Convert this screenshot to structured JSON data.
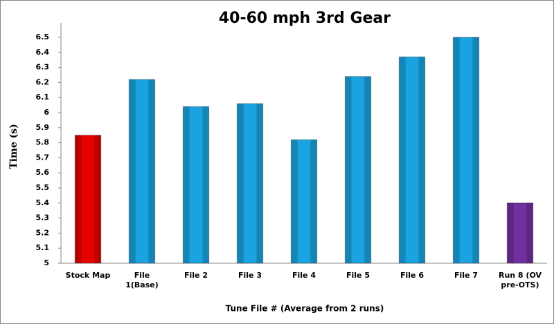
{
  "chart_data": {
    "type": "bar",
    "title": "40-60 mph 3rd Gear",
    "x_label": "Tune File # (Average from 2 runs)",
    "y_label": "Time (s)",
    "categories": [
      "Stock Map",
      "File 1(Base)",
      "File 2",
      "File 3",
      "File 4",
      "File 5",
      "File 6",
      "File 7",
      "Run 8 (OV pre-OTS)"
    ],
    "values": [
      5.85,
      6.22,
      6.04,
      6.06,
      5.82,
      6.24,
      6.37,
      6.5,
      5.4
    ],
    "colors": [
      "#e60000",
      "#1aa3e0",
      "#1aa3e0",
      "#1aa3e0",
      "#1aa3e0",
      "#1aa3e0",
      "#1aa3e0",
      "#1aa3e0",
      "#7030a0"
    ],
    "ylim": [
      5,
      6.5
    ],
    "yticks": [
      5,
      5.1,
      5.2,
      5.3,
      5.4,
      5.5,
      5.6,
      5.7,
      5.8,
      5.9,
      6,
      6.1,
      6.2,
      6.3,
      6.4,
      6.5
    ],
    "grid": false
  }
}
